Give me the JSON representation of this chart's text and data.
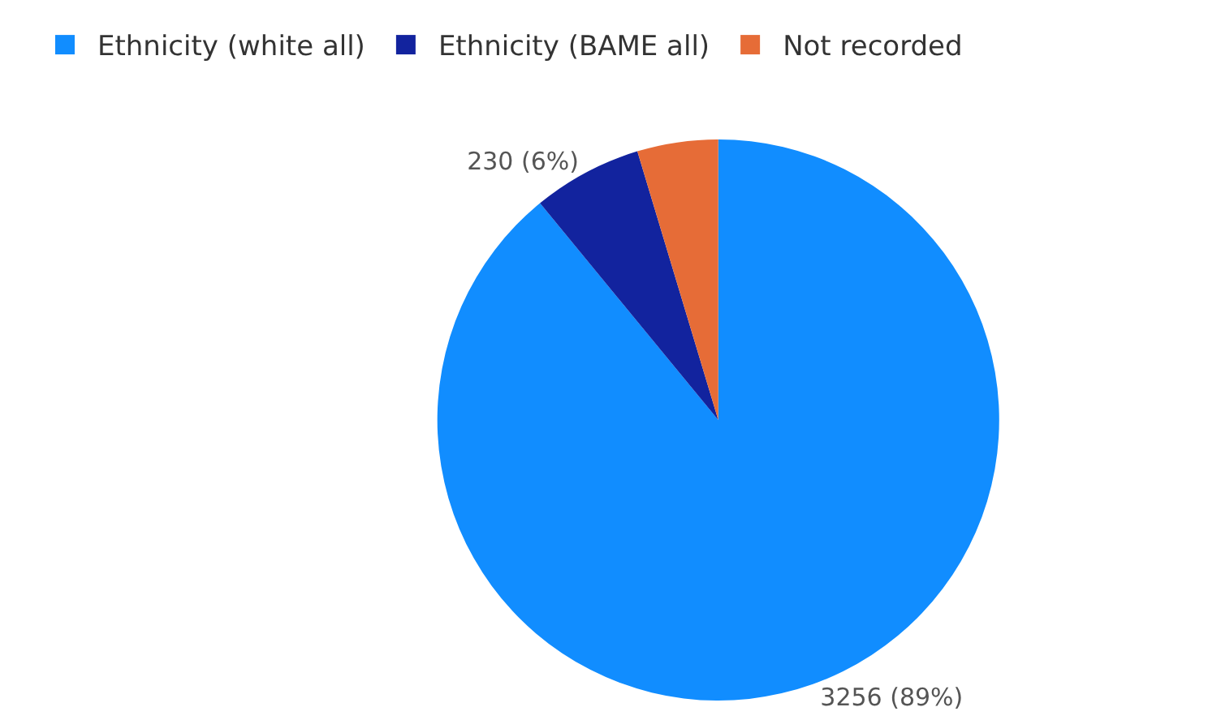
{
  "chart_data": {
    "type": "pie",
    "categories": [
      "Ethnicity (white all)",
      "Ethnicity (BAME all)",
      "Not recorded"
    ],
    "values": [
      3256,
      230,
      170
    ],
    "colors": [
      "#118dff",
      "#12239e",
      "#e66c37"
    ],
    "value_labels": [
      "3256 (89%)",
      "230 (6%)",
      null
    ],
    "legend": "top left"
  }
}
